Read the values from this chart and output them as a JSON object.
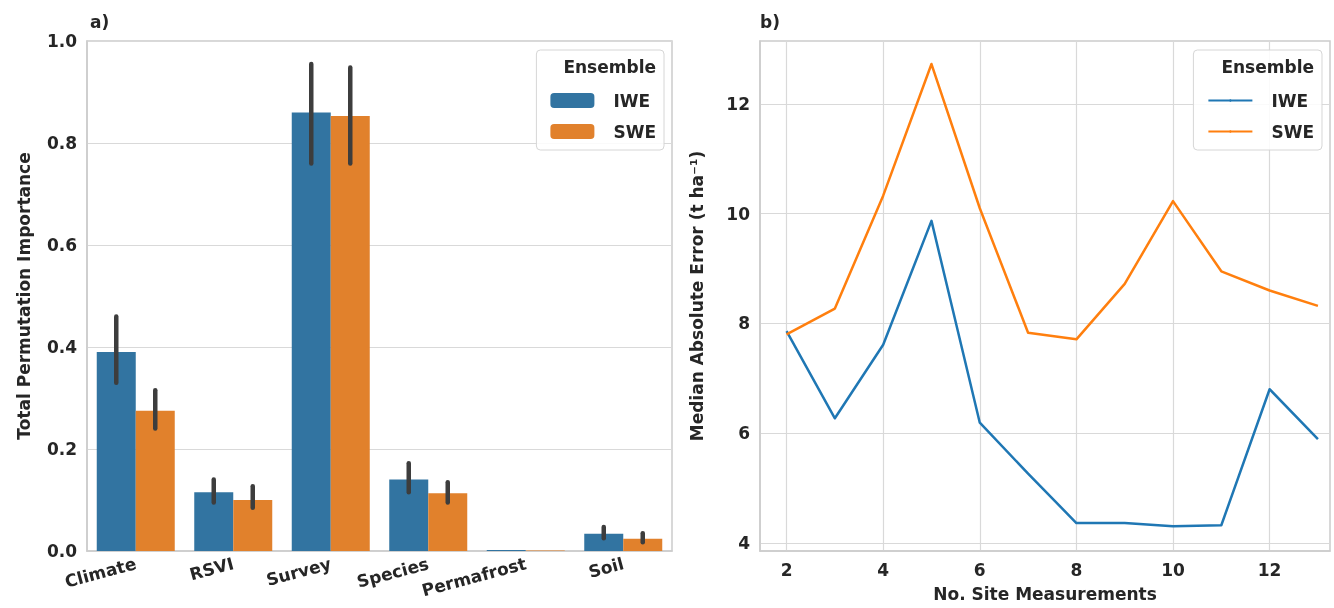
{
  "chart_data": [
    {
      "type": "bar",
      "title": "a)",
      "ylabel": "Total Permutation Importance",
      "legend_title": "Ensemble",
      "categories": [
        "Climate",
        "RSVI",
        "Survey",
        "Species",
        "Permafrost",
        "Soil"
      ],
      "series": [
        {
          "name": "IWE",
          "color": "#3274a1",
          "values": [
            0.39,
            0.115,
            0.86,
            0.14,
            0.002,
            0.034
          ],
          "errors": [
            [
              0.33,
              0.46
            ],
            [
              0.095,
              0.14
            ],
            [
              0.76,
              0.955
            ],
            [
              0.115,
              0.172
            ],
            null,
            [
              0.025,
              0.047
            ]
          ]
        },
        {
          "name": "SWE",
          "color": "#e1812c",
          "values": [
            0.275,
            0.1,
            0.853,
            0.113,
            0.001,
            0.024
          ],
          "errors": [
            [
              0.24,
              0.315
            ],
            [
              0.085,
              0.127
            ],
            [
              0.76,
              0.948
            ],
            [
              0.095,
              0.135
            ],
            null,
            [
              0.017,
              0.035
            ]
          ]
        }
      ],
      "ylim": [
        0,
        1.0
      ],
      "yticks": [
        {
          "value": 0,
          "label": "0.0"
        },
        {
          "value": 0.2,
          "label": "0.2"
        },
        {
          "value": 0.4,
          "label": "0.4"
        },
        {
          "value": 0.6,
          "label": "0.6"
        },
        {
          "value": 0.8,
          "label": "0.8"
        },
        {
          "value": 1.0,
          "label": "1.0"
        }
      ],
      "grid": "y",
      "legend": "top right"
    },
    {
      "type": "line",
      "title": "b)",
      "xlabel": "No. Site Measurements",
      "ylabel": "Median Absolute Error (t ha⁻¹)",
      "legend_title": "Ensemble",
      "x": [
        2,
        3,
        4,
        5,
        6,
        7,
        8,
        9,
        10,
        11,
        12,
        13
      ],
      "series": [
        {
          "name": "IWE",
          "color": "#1f77b4",
          "values": [
            7.86,
            6.27,
            7.61,
            9.87,
            6.19,
            5.26,
            4.36,
            4.36,
            4.3,
            4.32,
            6.8,
            5.89
          ]
        },
        {
          "name": "SWE",
          "color": "#ff7f0e",
          "values": [
            7.8,
            8.27,
            10.33,
            12.73,
            10.1,
            7.83,
            7.71,
            8.72,
            10.23,
            8.95,
            8.6,
            8.32
          ]
        }
      ],
      "xlim": [
        1.45,
        13.25
      ],
      "xticks": [
        2,
        4,
        6,
        8,
        10,
        12
      ],
      "ylim": [
        3.85,
        13.15
      ],
      "yticks": [
        4,
        6,
        8,
        10,
        12
      ],
      "grid": true,
      "legend": "top right",
      "marker": "none",
      "line_style": "solid"
    }
  ]
}
